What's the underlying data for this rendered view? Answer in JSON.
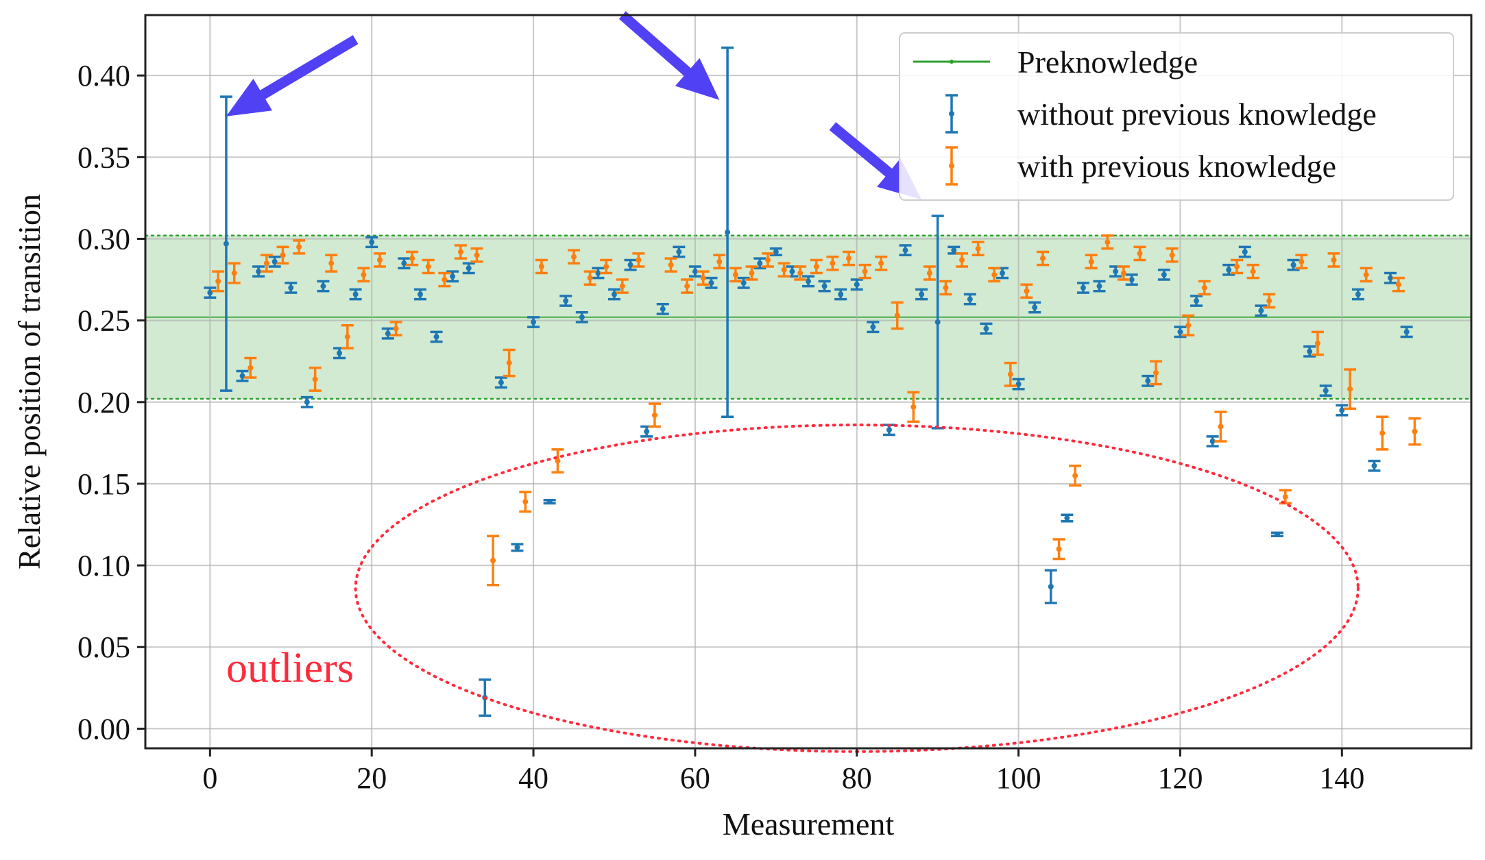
{
  "chart_data": {
    "type": "scatter",
    "xlabel": "Measurement",
    "ylabel": "Relative position of transition",
    "xlim": [
      -8,
      156
    ],
    "ylim": [
      -0.012,
      0.437
    ],
    "xticks": [
      0,
      20,
      40,
      60,
      80,
      100,
      120,
      140
    ],
    "yticks": [
      0.0,
      0.05,
      0.1,
      0.15,
      0.2,
      0.25,
      0.3,
      0.35,
      0.4
    ],
    "ytick_labels": [
      "0.00",
      "0.05",
      "0.10",
      "0.15",
      "0.20",
      "0.25",
      "0.30",
      "0.35",
      "0.40"
    ],
    "grid": true,
    "legend_position": "top-right",
    "reference_band": {
      "name": "Preknowledge",
      "center": 0.252,
      "lower": 0.202,
      "upper": 0.302,
      "color": "#2ca02c"
    },
    "series": [
      {
        "name": "without previous knowledge",
        "color": "#1f77b4",
        "x": [
          0,
          2,
          4,
          6,
          8,
          10,
          12,
          14,
          16,
          18,
          20,
          22,
          24,
          26,
          28,
          30,
          32,
          34,
          36,
          38,
          40,
          42,
          44,
          46,
          48,
          50,
          52,
          54,
          56,
          58,
          60,
          62,
          64,
          66,
          68,
          70,
          72,
          74,
          76,
          78,
          80,
          82,
          84,
          86,
          88,
          90,
          92,
          94,
          96,
          98,
          100,
          102,
          104,
          106,
          108,
          110,
          112,
          114,
          116,
          118,
          120,
          122,
          124,
          126,
          128,
          130,
          132,
          134,
          136,
          138,
          140,
          142,
          144,
          146,
          148
        ],
        "values": [
          0.267,
          0.297,
          0.216,
          0.28,
          0.286,
          0.27,
          0.2,
          0.271,
          0.23,
          0.266,
          0.298,
          0.242,
          0.285,
          0.266,
          0.24,
          0.277,
          0.282,
          0.019,
          0.212,
          0.111,
          0.249,
          0.139,
          0.262,
          0.252,
          0.279,
          0.266,
          0.284,
          0.182,
          0.257,
          0.292,
          0.28,
          0.273,
          0.304,
          0.273,
          0.285,
          0.292,
          0.28,
          0.274,
          0.271,
          0.266,
          0.272,
          0.246,
          0.183,
          0.293,
          0.266,
          0.249,
          0.293,
          0.263,
          0.245,
          0.279,
          0.211,
          0.258,
          0.087,
          0.129,
          0.27,
          0.271,
          0.28,
          0.275,
          0.213,
          0.278,
          0.243,
          0.262,
          0.176,
          0.281,
          0.292,
          0.256,
          0.119,
          0.284,
          0.231,
          0.207,
          0.195,
          0.266,
          0.161,
          0.276,
          0.243
        ],
        "err": [
          0.003,
          0.09,
          0.003,
          0.003,
          0.003,
          0.003,
          0.003,
          0.003,
          0.003,
          0.003,
          0.003,
          0.003,
          0.003,
          0.003,
          0.003,
          0.003,
          0.003,
          0.011,
          0.003,
          0.002,
          0.003,
          0.001,
          0.003,
          0.003,
          0.003,
          0.003,
          0.003,
          0.003,
          0.003,
          0.003,
          0.003,
          0.003,
          0.113,
          0.003,
          0.003,
          0.002,
          0.003,
          0.003,
          0.003,
          0.003,
          0.003,
          0.003,
          0.003,
          0.003,
          0.003,
          0.065,
          0.002,
          0.003,
          0.003,
          0.003,
          0.003,
          0.003,
          0.01,
          0.002,
          0.003,
          0.003,
          0.003,
          0.003,
          0.003,
          0.003,
          0.003,
          0.003,
          0.003,
          0.003,
          0.003,
          0.003,
          0.001,
          0.003,
          0.003,
          0.003,
          0.003,
          0.003,
          0.003,
          0.003,
          0.003
        ]
      },
      {
        "name": "with previous knowledge",
        "color": "#ff7f0e",
        "x": [
          1,
          3,
          5,
          7,
          9,
          11,
          13,
          15,
          17,
          19,
          21,
          23,
          25,
          27,
          29,
          31,
          33,
          35,
          37,
          39,
          41,
          43,
          45,
          47,
          49,
          51,
          53,
          55,
          57,
          59,
          61,
          63,
          65,
          67,
          69,
          71,
          73,
          75,
          77,
          79,
          81,
          83,
          85,
          87,
          89,
          91,
          93,
          95,
          97,
          99,
          101,
          103,
          105,
          107,
          109,
          111,
          113,
          115,
          117,
          119,
          121,
          123,
          125,
          127,
          129,
          131,
          133,
          135,
          137,
          139,
          141,
          143,
          145,
          147,
          149
        ],
        "values": [
          0.274,
          0.279,
          0.221,
          0.285,
          0.29,
          0.295,
          0.214,
          0.285,
          0.24,
          0.278,
          0.287,
          0.245,
          0.288,
          0.283,
          0.275,
          0.292,
          0.29,
          0.103,
          0.224,
          0.139,
          0.283,
          0.164,
          0.289,
          0.276,
          0.283,
          0.271,
          0.287,
          0.192,
          0.284,
          0.271,
          0.276,
          0.286,
          0.278,
          0.279,
          0.287,
          0.281,
          0.279,
          0.283,
          0.285,
          0.288,
          0.28,
          0.285,
          0.253,
          0.197,
          0.279,
          0.27,
          0.287,
          0.294,
          0.278,
          0.217,
          0.268,
          0.288,
          0.11,
          0.155,
          0.286,
          0.298,
          0.279,
          0.291,
          0.218,
          0.29,
          0.247,
          0.27,
          0.185,
          0.283,
          0.28,
          0.262,
          0.142,
          0.286,
          0.236,
          0.287,
          0.208,
          0.278,
          0.181,
          0.272,
          0.182
        ],
        "err": [
          0.006,
          0.006,
          0.006,
          0.005,
          0.005,
          0.004,
          0.007,
          0.005,
          0.007,
          0.004,
          0.004,
          0.004,
          0.004,
          0.004,
          0.004,
          0.004,
          0.004,
          0.015,
          0.008,
          0.006,
          0.004,
          0.007,
          0.004,
          0.004,
          0.004,
          0.004,
          0.004,
          0.007,
          0.004,
          0.004,
          0.004,
          0.004,
          0.004,
          0.004,
          0.004,
          0.004,
          0.004,
          0.004,
          0.004,
          0.004,
          0.004,
          0.004,
          0.008,
          0.009,
          0.004,
          0.004,
          0.004,
          0.004,
          0.004,
          0.007,
          0.004,
          0.004,
          0.006,
          0.006,
          0.004,
          0.004,
          0.004,
          0.004,
          0.007,
          0.004,
          0.006,
          0.004,
          0.009,
          0.004,
          0.004,
          0.004,
          0.004,
          0.004,
          0.007,
          0.004,
          0.012,
          0.004,
          0.01,
          0.004,
          0.008
        ]
      }
    ],
    "annotations": {
      "outlier_label": "outliers",
      "outlier_color": "#ff2a3c",
      "arrow_color": "#5141f4",
      "arrows": [
        {
          "target_x": 2,
          "target_y": 0.375,
          "tail_x": 18,
          "tail_y": 0.422
        },
        {
          "target_x": 63,
          "target_y": 0.385,
          "tail_x": 51,
          "tail_y": 0.437
        },
        {
          "target_x": 88,
          "target_y": 0.324,
          "tail_x": 77,
          "tail_y": 0.369
        }
      ],
      "ellipse": {
        "cx": 80,
        "cy": 0.086,
        "rx": 62,
        "ry": 0.1
      }
    }
  }
}
